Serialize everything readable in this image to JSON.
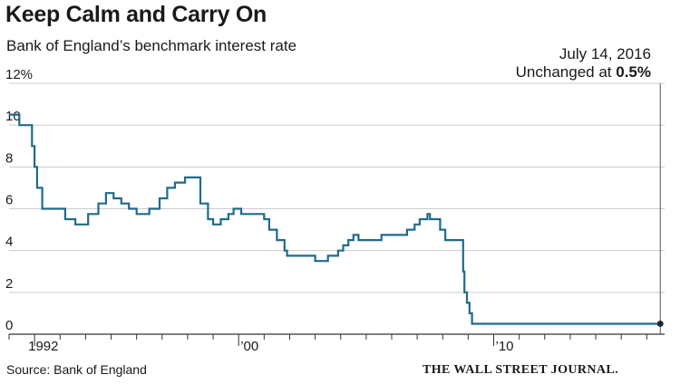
{
  "header": {
    "title": "Keep Calm and Carry On",
    "subtitle": "Bank of England’s benchmark interest rate"
  },
  "annotation": {
    "date": "July 14, 2016",
    "prefix": "Unchanged at ",
    "value": "0.5%"
  },
  "footer": {
    "source": "Source: Bank of England",
    "credit": "THE WALL STREET JOURNAL."
  },
  "colors": {
    "line": "#1f6b8a",
    "grid": "#cccccc",
    "axis": "#333333",
    "text": "#1a1a1a"
  },
  "chart_data": {
    "type": "line",
    "title": "Keep Calm and Carry On",
    "subtitle": "Bank of England’s benchmark interest rate",
    "xlabel": "",
    "ylabel": "",
    "xlim": [
      1991.0,
      2016.7
    ],
    "ylim": [
      0,
      12
    ],
    "grid": true,
    "legend": "none",
    "y_ticks": [
      {
        "value": 12,
        "label": "12%"
      },
      {
        "value": 10,
        "label": "10"
      },
      {
        "value": 8,
        "label": "8"
      },
      {
        "value": 6,
        "label": "6"
      },
      {
        "value": 4,
        "label": "4"
      },
      {
        "value": 2,
        "label": "2"
      },
      {
        "value": 0,
        "label": "0"
      }
    ],
    "x_ticks": [
      {
        "value": 1992,
        "label": "1992"
      },
      {
        "value": 2000,
        "label": "’00"
      },
      {
        "value": 2010,
        "label": "’10"
      }
    ],
    "series": [
      {
        "x": [
          1991.0,
          1991.4,
          1991.4,
          1991.9,
          1991.9,
          1992.0,
          1992.0,
          1992.1,
          1992.1,
          1992.3,
          1992.3,
          1993.2,
          1993.2,
          1993.6,
          1993.6,
          1994.1,
          1994.1,
          1994.5,
          1994.5,
          1994.8,
          1994.8,
          1995.1,
          1995.1,
          1995.4,
          1995.4,
          1995.7,
          1995.7,
          1996.0,
          1996.0,
          1996.5,
          1996.5,
          1996.9,
          1996.9,
          1997.2,
          1997.2,
          1997.5,
          1997.5,
          1997.9,
          1997.9,
          1998.5,
          1998.5,
          1998.8,
          1998.8,
          1999.0,
          1999.0,
          1999.3,
          1999.3,
          1999.6,
          1999.6,
          1999.8,
          1999.8,
          2000.1,
          2000.1,
          2001.0,
          2001.0,
          2001.2,
          2001.2,
          2001.5,
          2001.5,
          2001.8,
          2001.8,
          2001.9,
          2001.9,
          2003.0,
          2003.0,
          2003.5,
          2003.5,
          2003.9,
          2003.9,
          2004.1,
          2004.1,
          2004.3,
          2004.3,
          2004.5,
          2004.5,
          2004.7,
          2004.7,
          2005.6,
          2005.6,
          2006.6,
          2006.6,
          2006.9,
          2006.9,
          2007.1,
          2007.1,
          2007.4,
          2007.4,
          2007.5,
          2007.5,
          2007.9,
          2007.9,
          2008.1,
          2008.1,
          2008.8,
          2008.8,
          2008.85,
          2008.85,
          2008.95,
          2008.95,
          2009.05,
          2009.05,
          2009.15,
          2009.15,
          2016.53
        ],
        "values": [
          10.5,
          10.5,
          10.0,
          10.0,
          9.0,
          9.0,
          8.0,
          8.0,
          7.0,
          7.0,
          6.0,
          6.0,
          5.5,
          5.5,
          5.25,
          5.25,
          5.75,
          5.75,
          6.25,
          6.25,
          6.75,
          6.75,
          6.5,
          6.5,
          6.25,
          6.25,
          6.0,
          6.0,
          5.75,
          5.75,
          6.0,
          6.0,
          6.5,
          6.5,
          7.0,
          7.0,
          7.25,
          7.25,
          7.5,
          7.5,
          6.25,
          6.25,
          5.5,
          5.5,
          5.25,
          5.25,
          5.5,
          5.5,
          5.75,
          5.75,
          6.0,
          6.0,
          5.75,
          5.75,
          5.5,
          5.5,
          5.0,
          5.0,
          4.5,
          4.5,
          4.0,
          4.0,
          3.75,
          3.75,
          3.5,
          3.5,
          3.75,
          3.75,
          4.0,
          4.0,
          4.25,
          4.25,
          4.5,
          4.5,
          4.75,
          4.75,
          4.5,
          4.5,
          4.75,
          4.75,
          5.0,
          5.0,
          5.25,
          5.25,
          5.5,
          5.5,
          5.75,
          5.75,
          5.5,
          5.5,
          5.0,
          5.0,
          4.5,
          4.5,
          3.0,
          3.0,
          2.0,
          2.0,
          1.5,
          1.5,
          1.0,
          1.0,
          0.5,
          0.5
        ]
      }
    ],
    "marker": {
      "x": 2016.53,
      "value": 0.5
    }
  }
}
